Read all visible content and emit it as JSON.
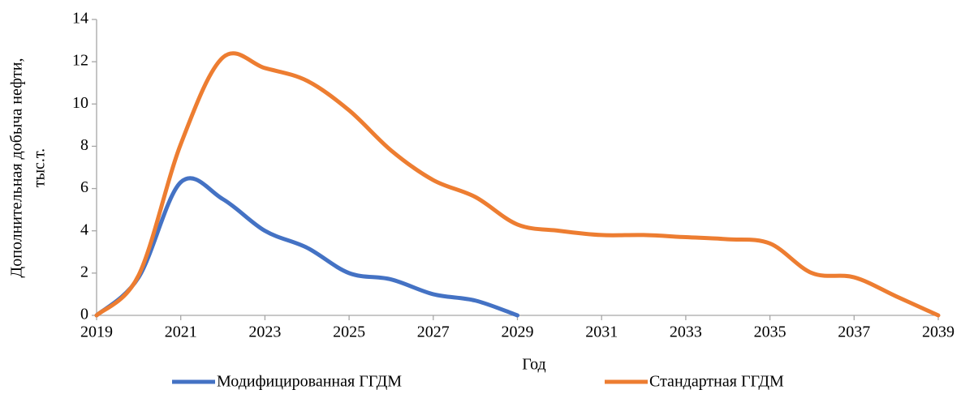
{
  "chart_data": {
    "type": "line",
    "xlabel": "Год",
    "ylabel": [
      "Дополнительная добыча нефти,",
      "тыс.т."
    ],
    "x": [
      2019,
      2020,
      2021,
      2022,
      2023,
      2024,
      2025,
      2026,
      2027,
      2028,
      2029,
      2030,
      2031,
      2032,
      2033,
      2034,
      2035,
      2036,
      2037,
      2038,
      2039
    ],
    "series": [
      {
        "name": "Модифицированная ГГДМ",
        "color": "#4472c4",
        "values": [
          0,
          1.8,
          6.3,
          5.5,
          4.0,
          3.2,
          2.0,
          1.7,
          1.0,
          0.7,
          0,
          null,
          null,
          null,
          null,
          null,
          null,
          null,
          null,
          null,
          null
        ]
      },
      {
        "name": "Стандартная ГГДМ",
        "color": "#ed7d31",
        "values": [
          0,
          1.9,
          8.1,
          12.2,
          11.7,
          11.1,
          9.7,
          7.8,
          6.4,
          5.6,
          4.3,
          4.0,
          3.8,
          3.8,
          3.7,
          3.6,
          3.4,
          2.0,
          1.8,
          0.9,
          0
        ]
      }
    ],
    "xlim": [
      2019,
      2039
    ],
    "xticks": [
      2019,
      2021,
      2023,
      2025,
      2027,
      2029,
      2031,
      2033,
      2035,
      2037,
      2039
    ],
    "ylim": [
      0,
      14
    ],
    "yticks": [
      0,
      2,
      4,
      6,
      8,
      10,
      12,
      14
    ],
    "legend": "bottom",
    "grid": false
  }
}
